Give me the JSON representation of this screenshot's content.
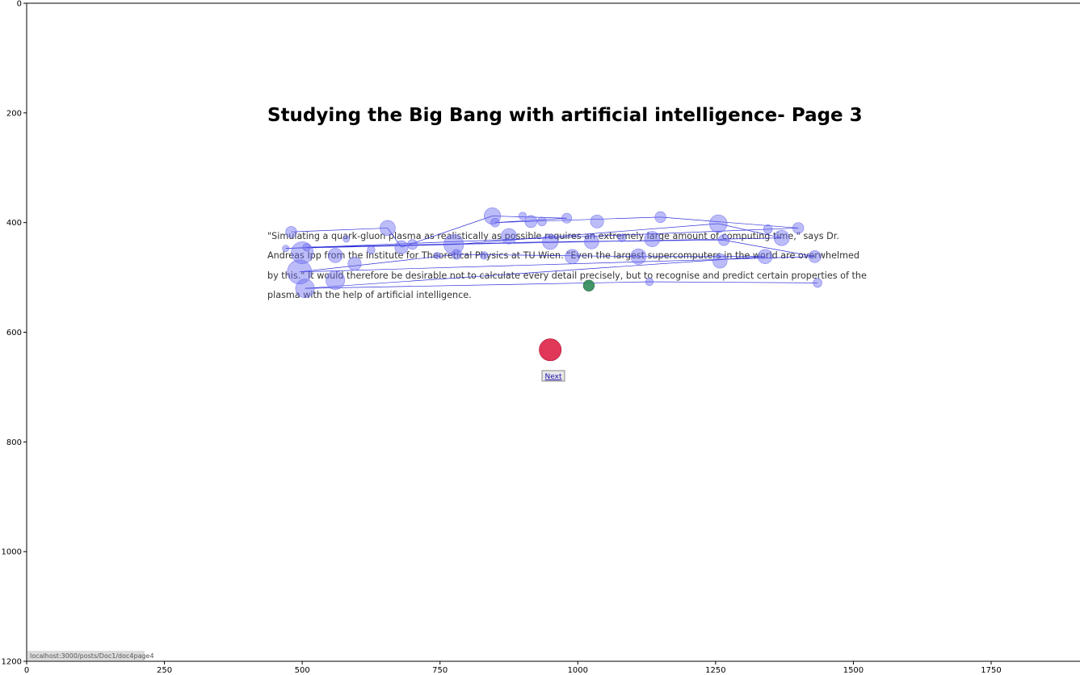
{
  "page": {
    "title": "Studying the Big Bang with artificial intelligence- Page 3",
    "paragraph_lines": [
      "\"Simulating a quark-gluon plasma as realistically as possible requires an extremely large amount of computing time,\" says Dr.",
      "Andreas Ipp from the Institute for Theoretical Physics at TU Wien. \"Even the largest supercomputers in the world are overwhelmed",
      "by this.\" It would therefore be desirable not to calculate every detail precisely, but to recognise and predict certain properties of the",
      "plasma with the help of artificial intelligence."
    ],
    "next_button_label": "Next",
    "status_url": "localhost:3000/posts/Doc1/doc4page4"
  },
  "chart_data": {
    "type": "scatter",
    "title": "",
    "xlabel": "",
    "ylabel": "",
    "xlim": [
      0,
      1920
    ],
    "ylim": [
      1200,
      0
    ],
    "x_ticks": [
      0,
      250,
      500,
      750,
      1000,
      1250,
      1500,
      1750
    ],
    "y_ticks": [
      0,
      200,
      400,
      600,
      800,
      1000,
      1200
    ],
    "grid": false,
    "colors": {
      "fixation": "#6b6bf0",
      "path": "#1a1ad6",
      "start": "#2e8b57",
      "end": "#dc143c"
    },
    "fixations": [
      {
        "x": 480,
        "y": 417,
        "r": 10
      },
      {
        "x": 508,
        "y": 445,
        "r": 7
      },
      {
        "x": 470,
        "y": 447,
        "r": 6
      },
      {
        "x": 500,
        "y": 455,
        "r": 20
      },
      {
        "x": 580,
        "y": 430,
        "r": 6
      },
      {
        "x": 560,
        "y": 460,
        "r": 13
      },
      {
        "x": 595,
        "y": 475,
        "r": 12
      },
      {
        "x": 625,
        "y": 450,
        "r": 7
      },
      {
        "x": 655,
        "y": 410,
        "r": 14
      },
      {
        "x": 680,
        "y": 445,
        "r": 12
      },
      {
        "x": 700,
        "y": 440,
        "r": 9
      },
      {
        "x": 775,
        "y": 440,
        "r": 18
      },
      {
        "x": 780,
        "y": 458,
        "r": 9
      },
      {
        "x": 745,
        "y": 460,
        "r": 6
      },
      {
        "x": 830,
        "y": 460,
        "r": 7
      },
      {
        "x": 845,
        "y": 388,
        "r": 15
      },
      {
        "x": 850,
        "y": 400,
        "r": 8
      },
      {
        "x": 875,
        "y": 425,
        "r": 14
      },
      {
        "x": 900,
        "y": 388,
        "r": 7
      },
      {
        "x": 915,
        "y": 398,
        "r": 11
      },
      {
        "x": 935,
        "y": 398,
        "r": 8
      },
      {
        "x": 950,
        "y": 435,
        "r": 14
      },
      {
        "x": 980,
        "y": 392,
        "r": 9
      },
      {
        "x": 990,
        "y": 462,
        "r": 13
      },
      {
        "x": 1025,
        "y": 435,
        "r": 13
      },
      {
        "x": 1035,
        "y": 398,
        "r": 12
      },
      {
        "x": 1080,
        "y": 428,
        "r": 7
      },
      {
        "x": 1110,
        "y": 462,
        "r": 14
      },
      {
        "x": 1135,
        "y": 430,
        "r": 14
      },
      {
        "x": 1130,
        "y": 508,
        "r": 7
      },
      {
        "x": 1150,
        "y": 390,
        "r": 10
      },
      {
        "x": 1255,
        "y": 402,
        "r": 16
      },
      {
        "x": 1258,
        "y": 470,
        "r": 13
      },
      {
        "x": 1265,
        "y": 432,
        "r": 10
      },
      {
        "x": 1340,
        "y": 462,
        "r": 13
      },
      {
        "x": 1345,
        "y": 412,
        "r": 8
      },
      {
        "x": 1370,
        "y": 428,
        "r": 14
      },
      {
        "x": 1400,
        "y": 410,
        "r": 10
      },
      {
        "x": 1430,
        "y": 462,
        "r": 11
      },
      {
        "x": 1435,
        "y": 510,
        "r": 8
      },
      {
        "x": 495,
        "y": 490,
        "r": 22
      },
      {
        "x": 560,
        "y": 505,
        "r": 17
      },
      {
        "x": 505,
        "y": 520,
        "r": 17
      }
    ],
    "path": [
      {
        "x": 480,
        "y": 417
      },
      {
        "x": 655,
        "y": 410
      },
      {
        "x": 680,
        "y": 445
      },
      {
        "x": 845,
        "y": 388
      },
      {
        "x": 980,
        "y": 392
      },
      {
        "x": 850,
        "y": 400
      },
      {
        "x": 1150,
        "y": 390
      },
      {
        "x": 1400,
        "y": 410
      },
      {
        "x": 470,
        "y": 447
      },
      {
        "x": 775,
        "y": 440
      },
      {
        "x": 1255,
        "y": 402
      },
      {
        "x": 1370,
        "y": 428
      },
      {
        "x": 508,
        "y": 445
      },
      {
        "x": 950,
        "y": 435
      },
      {
        "x": 1265,
        "y": 432
      },
      {
        "x": 1430,
        "y": 462
      },
      {
        "x": 495,
        "y": 490
      },
      {
        "x": 780,
        "y": 458
      },
      {
        "x": 1110,
        "y": 462
      },
      {
        "x": 1340,
        "y": 462
      },
      {
        "x": 505,
        "y": 520
      },
      {
        "x": 1130,
        "y": 508
      },
      {
        "x": 1435,
        "y": 510
      }
    ],
    "start_point": {
      "x": 1020,
      "y": 515,
      "r": 10
    },
    "end_point": {
      "x": 950,
      "y": 632,
      "r": 20
    }
  }
}
